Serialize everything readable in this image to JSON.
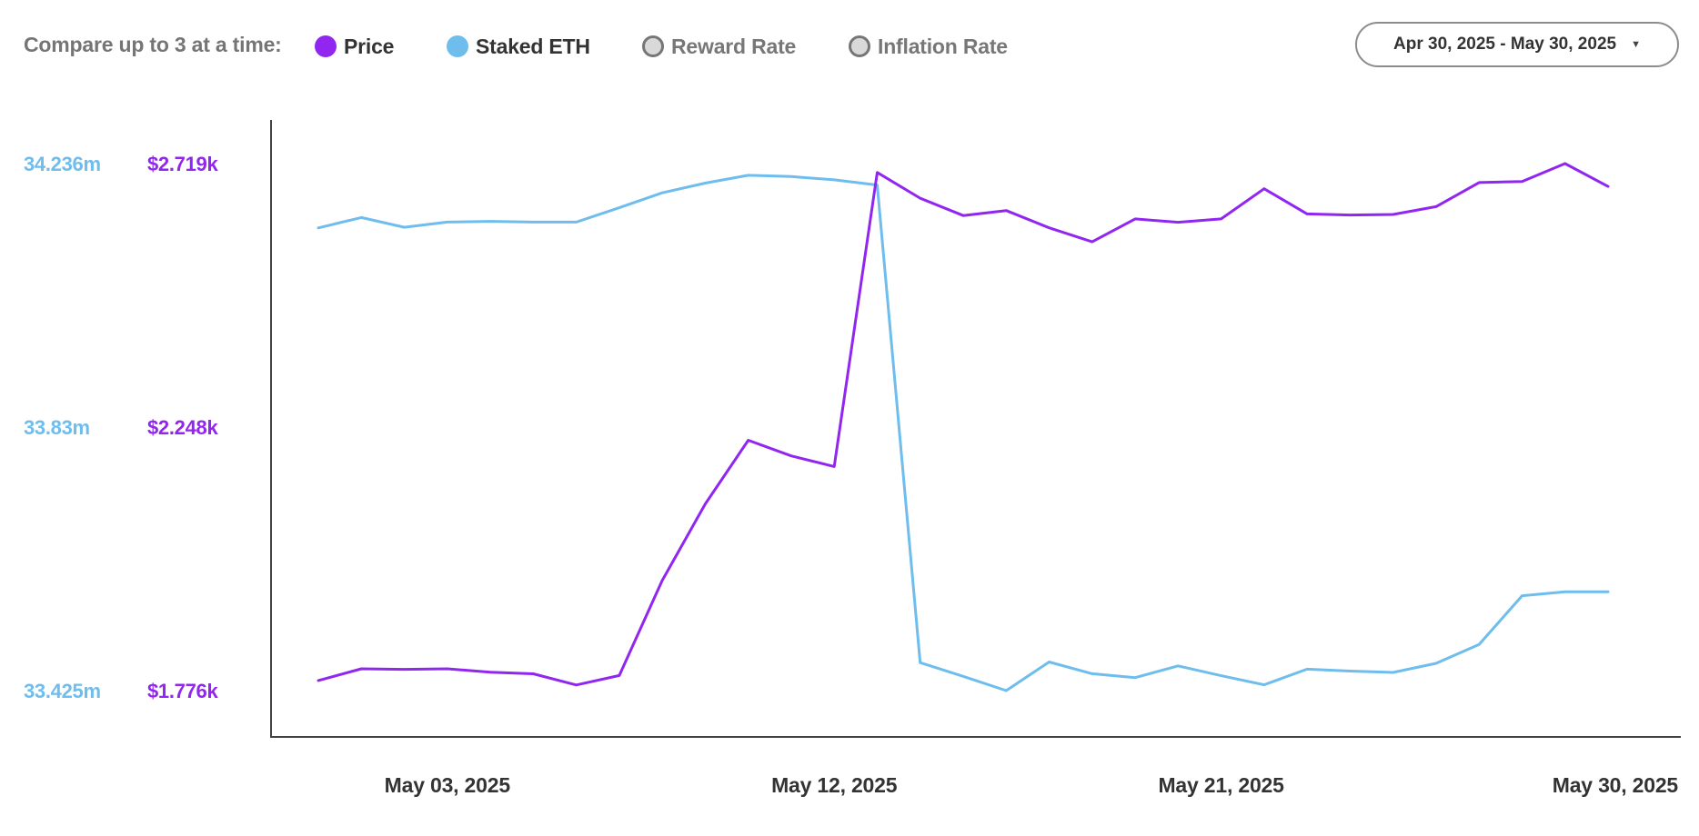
{
  "toolbar": {
    "compare_label": "Compare up to 3 at a time:",
    "metrics": [
      {
        "label": "Price",
        "color": "#9126f0",
        "selected": true
      },
      {
        "label": "Staked ETH",
        "color": "#6ebded",
        "selected": true
      },
      {
        "label": "Reward Rate",
        "color": "#d9d9d9",
        "selected": false
      },
      {
        "label": "Inflation Rate",
        "color": "#d9d9d9",
        "selected": false
      }
    ],
    "date_range": "Apr 30, 2025 - May 30, 2025",
    "date_range_icon": "chevron-down-icon"
  },
  "chart_data": {
    "type": "line",
    "x": [
      "2025-04-30",
      "2025-05-01",
      "2025-05-02",
      "2025-05-03",
      "2025-05-04",
      "2025-05-05",
      "2025-05-06",
      "2025-05-07",
      "2025-05-08",
      "2025-05-09",
      "2025-05-10",
      "2025-05-11",
      "2025-05-12",
      "2025-05-13",
      "2025-05-14",
      "2025-05-15",
      "2025-05-16",
      "2025-05-17",
      "2025-05-18",
      "2025-05-19",
      "2025-05-20",
      "2025-05-21",
      "2025-05-22",
      "2025-05-23",
      "2025-05-24",
      "2025-05-25",
      "2025-05-26",
      "2025-05-27",
      "2025-05-28",
      "2025-05-29",
      "2025-05-30"
    ],
    "x_ticks": [
      "May 03, 2025",
      "May 12, 2025",
      "May 21, 2025",
      "May 30, 2025"
    ],
    "series": [
      {
        "name": "Price",
        "color": "#9126f0",
        "axis": "price",
        "values": [
          1794,
          1815,
          1814,
          1815,
          1809,
          1806,
          1786,
          1803,
          1973,
          2110,
          2224,
          2196,
          2177,
          2703,
          2657,
          2626,
          2635,
          2604,
          2579,
          2620,
          2614,
          2620,
          2674,
          2629,
          2627,
          2628,
          2642,
          2685,
          2687,
          2719,
          2678
        ]
      },
      {
        "name": "Staked ETH",
        "color": "#6ebded",
        "axis": "staked",
        "values": [
          34.137,
          34.153,
          34.138,
          34.146,
          34.147,
          34.146,
          34.146,
          34.168,
          34.191,
          34.206,
          34.218,
          34.216,
          34.211,
          34.203,
          33.468,
          33.447,
          33.425,
          33.469,
          33.451,
          33.445,
          33.463,
          33.448,
          33.434,
          33.458,
          33.455,
          33.453,
          33.467,
          33.496,
          33.571,
          33.577,
          33.577
        ]
      }
    ],
    "axes": {
      "price": {
        "ticks": [
          "$2.719k",
          "$2.248k",
          "$1.776k"
        ],
        "ylim": [
          1776,
          2719
        ],
        "color": "#9126f0"
      },
      "staked": {
        "ticks": [
          "34.236m",
          "33.83m",
          "33.425m"
        ],
        "ylim": [
          33.425,
          34.236
        ],
        "color": "#6ebded"
      }
    },
    "title": "",
    "xlabel": "",
    "ylabel": ""
  }
}
